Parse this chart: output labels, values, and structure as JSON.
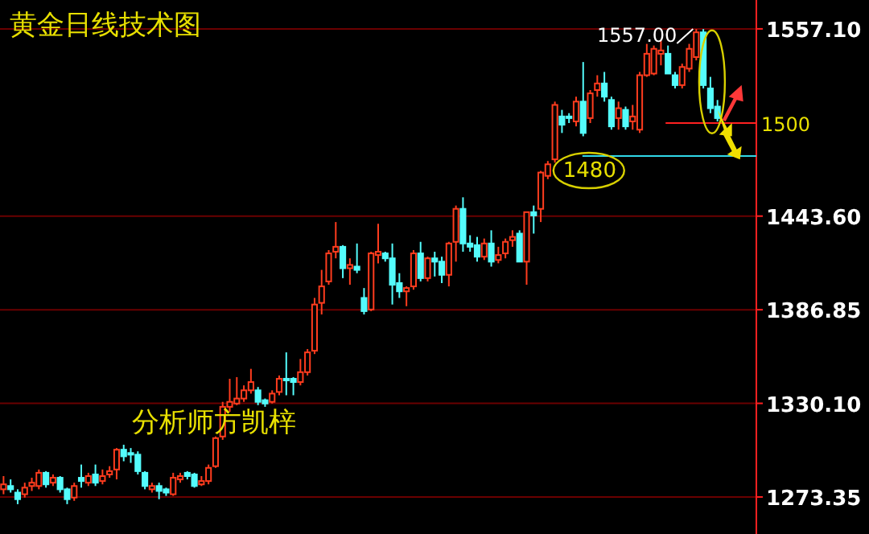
{
  "chart_data": {
    "type": "candlestick",
    "title": "黄金日线技术图",
    "categories": [
      null,
      null,
      null,
      null,
      null,
      null,
      null,
      null,
      null,
      null,
      null,
      null,
      null,
      null,
      null,
      null,
      null,
      null,
      null,
      null,
      null,
      null,
      null,
      null,
      null,
      null,
      null,
      null,
      null,
      null,
      null,
      null,
      null,
      null,
      null,
      null,
      null,
      null,
      null,
      null,
      null,
      null,
      null,
      null,
      null,
      null,
      null,
      null,
      null,
      null,
      null,
      null,
      null,
      null,
      null,
      null,
      null,
      null,
      null,
      null,
      null,
      null,
      null,
      null,
      null,
      null,
      null,
      null,
      null,
      null,
      null,
      null,
      null,
      null,
      null,
      null,
      null,
      null,
      null,
      null,
      null,
      null,
      null,
      null,
      null,
      null,
      null,
      null,
      null,
      null,
      null,
      null,
      null,
      null,
      null,
      null,
      null,
      null,
      null,
      null,
      null,
      null
    ],
    "ohlc": [
      [
        1278,
        1286,
        1275,
        1281
      ],
      [
        1280,
        1284,
        1276,
        1278
      ],
      [
        1276,
        1278,
        1269,
        1272
      ],
      [
        1275,
        1282,
        1273,
        1279
      ],
      [
        1280,
        1285,
        1277,
        1282
      ],
      [
        1280,
        1290,
        1278,
        1288
      ],
      [
        1288,
        1289,
        1279,
        1281
      ],
      [
        1282,
        1287,
        1280,
        1285
      ],
      [
        1285,
        1286,
        1276,
        1278
      ],
      [
        1278,
        1279,
        1269,
        1272
      ],
      [
        1273,
        1282,
        1271,
        1280
      ],
      [
        1285,
        1293,
        1279,
        1283
      ],
      [
        1282,
        1288,
        1280,
        1286
      ],
      [
        1287,
        1293,
        1280,
        1282
      ],
      [
        1283,
        1290,
        1281,
        1286
      ],
      [
        1287,
        1292,
        1285,
        1289
      ],
      [
        1290,
        1303,
        1284,
        1302
      ],
      [
        1302,
        1305,
        1295,
        1298
      ],
      [
        1300,
        1303,
        1294,
        1299
      ],
      [
        1299,
        1301,
        1287,
        1289
      ],
      [
        1288,
        1289,
        1278,
        1280
      ],
      [
        1278,
        1282,
        1276,
        1280
      ],
      [
        1280,
        1282,
        1272,
        1277
      ],
      [
        1278,
        1279,
        1274,
        1276
      ],
      [
        1275,
        1288,
        1274,
        1285
      ],
      [
        1284,
        1288,
        1282,
        1286
      ],
      [
        1288,
        1289,
        1284,
        1286
      ],
      [
        1287,
        1288,
        1279,
        1280
      ],
      [
        1281,
        1286,
        1280,
        1283
      ],
      [
        1283,
        1293,
        1281,
        1291
      ],
      [
        1292,
        1310,
        1291,
        1309
      ],
      [
        1310,
        1331,
        1308,
        1328
      ],
      [
        1328,
        1345,
        1325,
        1331
      ],
      [
        1330,
        1346,
        1329,
        1333
      ],
      [
        1333,
        1341,
        1331,
        1338
      ],
      [
        1338,
        1351,
        1336,
        1343
      ],
      [
        1338,
        1340,
        1329,
        1331
      ],
      [
        1332,
        1333,
        1328,
        1330
      ],
      [
        1331,
        1338,
        1330,
        1336
      ],
      [
        1337,
        1347,
        1335,
        1345
      ],
      [
        1345,
        1361,
        1335,
        1344
      ],
      [
        1345,
        1346,
        1335,
        1343
      ],
      [
        1343,
        1357,
        1341,
        1349
      ],
      [
        1349,
        1363,
        1347,
        1361
      ],
      [
        1362,
        1394,
        1360,
        1390
      ],
      [
        1391,
        1411,
        1384,
        1401
      ],
      [
        1404,
        1423,
        1402,
        1421
      ],
      [
        1422,
        1440,
        1418,
        1425
      ],
      [
        1425,
        1426,
        1406,
        1412
      ],
      [
        1412,
        1418,
        1402,
        1414
      ],
      [
        1413,
        1427,
        1409,
        1411
      ],
      [
        1394,
        1400,
        1384,
        1386
      ],
      [
        1387,
        1422,
        1386,
        1421
      ],
      [
        1420,
        1439,
        1415,
        1422
      ],
      [
        1421,
        1422,
        1416,
        1418
      ],
      [
        1418,
        1427,
        1390,
        1402
      ],
      [
        1403,
        1409,
        1394,
        1398
      ],
      [
        1398,
        1401,
        1389,
        1400
      ],
      [
        1401,
        1423,
        1399,
        1421
      ],
      [
        1421,
        1428,
        1404,
        1406
      ],
      [
        1406,
        1419,
        1404,
        1418
      ],
      [
        1418,
        1422,
        1407,
        1416
      ],
      [
        1416,
        1419,
        1403,
        1408
      ],
      [
        1408,
        1428,
        1401,
        1427
      ],
      [
        1428,
        1450,
        1416,
        1448
      ],
      [
        1448,
        1455,
        1422,
        1427
      ],
      [
        1427,
        1432,
        1422,
        1425
      ],
      [
        1426,
        1431,
        1416,
        1419
      ],
      [
        1419,
        1430,
        1417,
        1427
      ],
      [
        1427,
        1435,
        1413,
        1416
      ],
      [
        1417,
        1425,
        1415,
        1420
      ],
      [
        1421,
        1430,
        1418,
        1428
      ],
      [
        1429,
        1435,
        1425,
        1431
      ],
      [
        1433,
        1435,
        1416,
        1416
      ],
      [
        1416,
        1446,
        1402,
        1446
      ],
      [
        1446,
        1450,
        1433,
        1444
      ],
      [
        1448,
        1471,
        1440,
        1470
      ],
      [
        1468,
        1477,
        1466,
        1475
      ],
      [
        1478,
        1513,
        1476,
        1511
      ],
      [
        1504,
        1508,
        1494,
        1499
      ],
      [
        1504,
        1506,
        1500,
        1503
      ],
      [
        1501,
        1516,
        1498,
        1513
      ],
      [
        1513,
        1537,
        1492,
        1494
      ],
      [
        1503,
        1520,
        1500,
        1518
      ],
      [
        1520,
        1529,
        1516,
        1524
      ],
      [
        1524,
        1531,
        1513,
        1516
      ],
      [
        1514,
        1516,
        1496,
        1498
      ],
      [
        1503,
        1513,
        1496,
        1509
      ],
      [
        1508,
        1510,
        1496,
        1498
      ],
      [
        1501,
        1511,
        1496,
        1504
      ],
      [
        1496,
        1531,
        1494,
        1529
      ],
      [
        1529,
        1548,
        1528,
        1542
      ],
      [
        1530,
        1547,
        1529,
        1545
      ],
      [
        1542,
        1550,
        1535,
        1544
      ],
      [
        1542,
        1547,
        1530,
        1530
      ],
      [
        1529,
        1531,
        1521,
        1523
      ],
      [
        1523,
        1536,
        1521,
        1534
      ],
      [
        1533,
        1548,
        1531,
        1545
      ],
      [
        1540,
        1557,
        1538,
        1555
      ],
      [
        1555,
        1557,
        1521,
        1523
      ],
      [
        1521,
        1528,
        1506,
        1509
      ],
      [
        1510,
        1514,
        1501,
        1503
      ]
    ],
    "ylim": [
      1250.9,
      1574.6
    ],
    "yticks": [
      {
        "value": 1557.1,
        "label": "1557.10"
      },
      {
        "value": 1443.6,
        "label": "1443.60"
      },
      {
        "value": 1386.85,
        "label": "1386.85"
      },
      {
        "value": 1330.1,
        "label": "1330.10"
      },
      {
        "value": 1273.35,
        "label": "1273.35"
      }
    ],
    "grid": "y",
    "ref_lines": [
      {
        "axis": "y",
        "value": 1500,
        "label": "1500",
        "color": "#ff2020"
      },
      {
        "axis": "y",
        "value": 1480,
        "label": "1480",
        "color": "#30d8e8"
      }
    ],
    "annotations": [
      "1557.00",
      "分析师方凯梓"
    ]
  }
}
